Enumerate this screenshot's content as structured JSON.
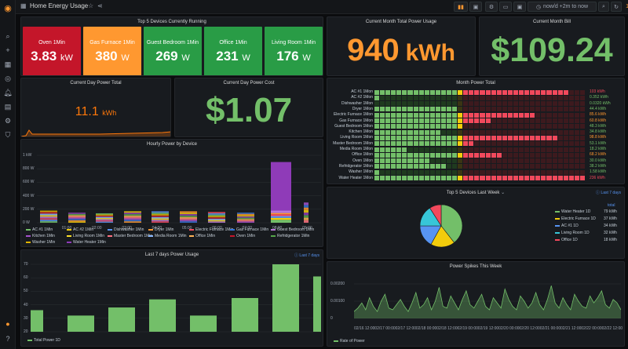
{
  "dashboard": {
    "title": "Home Energy Usage",
    "time_range": "now/d +2m to now",
    "refresh": "1m"
  },
  "top5": {
    "title": "Top 5 Devices Currently Running",
    "devices": [
      {
        "label": "Oven 1Min",
        "value": "3.83",
        "unit": "kW",
        "color": "#c4162a"
      },
      {
        "label": "Gas Furnace 1Min",
        "value": "380",
        "unit": "W",
        "color": "#ff9830"
      },
      {
        "label": "Guest Bedroom 1Min",
        "value": "269",
        "unit": "W",
        "color": "#299c46"
      },
      {
        "label": "Office 1Min",
        "value": "231",
        "unit": "W",
        "color": "#299c46"
      },
      {
        "label": "Living Room 1Min",
        "value": "176",
        "unit": "W",
        "color": "#299c46"
      }
    ]
  },
  "month_total": {
    "title": "Current Month Total Power Usage",
    "value": "940",
    "unit": "kWh",
    "color": "#ff9830"
  },
  "month_bill": {
    "title": "Current Month Bill",
    "value": "$109.24",
    "color": "#73bf69"
  },
  "day_total": {
    "title": "Current Day Power Total",
    "value": "11.1",
    "unit": "kWh",
    "color": "#ff780a"
  },
  "day_cost": {
    "title": "Current Day Power Cost",
    "value": "$1.07",
    "color": "#73bf69"
  },
  "hourly": {
    "title": "Hourly Power by Device",
    "y_ticks": [
      "1 kW",
      "800 W",
      "600 W",
      "400 W",
      "200 W",
      "0 W"
    ],
    "x_ticks": [
      "01:00",
      "02:00",
      "03:00",
      "04:00",
      "05:00",
      "06:00",
      "07:00",
      "08:00",
      "09:00"
    ],
    "legend": [
      {
        "name": "AC #1 1Min",
        "color": "#73bf69"
      },
      {
        "name": "AC #2 1Min",
        "color": "#f2cc0c"
      },
      {
        "name": "Dishwasher 1Min",
        "color": "#5794f2"
      },
      {
        "name": "Dryer 1Min",
        "color": "#ff9830"
      },
      {
        "name": "Electric Furnace 1Min",
        "color": "#f2495c"
      },
      {
        "name": "Gas Furnace 1Min",
        "color": "#3274d9"
      },
      {
        "name": "Guest Bedroom 1Min",
        "color": "#b877d9"
      },
      {
        "name": "Kitchen 1Min",
        "color": "#a352cc"
      },
      {
        "name": "Living Room 1Min",
        "color": "#fade2a"
      },
      {
        "name": "Master Bedroom 1Min",
        "color": "#ff7383"
      },
      {
        "name": "Media Room 1Min",
        "color": "#8ab8ff"
      },
      {
        "name": "Office 1Min",
        "color": "#ffb357"
      },
      {
        "name": "Oven 1Min",
        "color": "#c4162a"
      },
      {
        "name": "Refridgerator 1Min",
        "color": "#56a64b"
      },
      {
        "name": "Washer 1Min",
        "color": "#e0b400"
      },
      {
        "name": "Water Heater 1Min",
        "color": "#8f3bb8"
      }
    ]
  },
  "month_power": {
    "title": "Month Power Total",
    "rows": [
      {
        "label": "AC #1 1Mon",
        "value": "103 kWh",
        "frac": 0.92,
        "color": "#f2495c"
      },
      {
        "label": "AC #2 1Mon",
        "value": "0.352 kWh",
        "frac": 0.02,
        "color": "#73bf69"
      },
      {
        "label": "Dishwasher 1Mon",
        "value": "0.0320 kWh",
        "frac": 0.01,
        "color": "#73bf69"
      },
      {
        "label": "Dryer 1Mon",
        "value": "44.4 kWh",
        "frac": 0.4,
        "color": "#73bf69"
      },
      {
        "label": "Electric Furnace 1Mon",
        "value": "85.6 kWh",
        "frac": 0.76,
        "color": "#ff9830"
      },
      {
        "label": "Gas Furnace 1Mon",
        "value": "60.8 kWh",
        "frac": 0.55,
        "color": "#ff9830"
      },
      {
        "label": "Guest Bedroom 1Mon",
        "value": "48.3 kWh",
        "frac": 0.43,
        "color": "#73bf69"
      },
      {
        "label": "Kitchen 1Mon",
        "value": "34.8 kWh",
        "frac": 0.31,
        "color": "#73bf69"
      },
      {
        "label": "Living Room 1Mon",
        "value": "98.8 kWh",
        "frac": 0.88,
        "color": "#ff9830"
      },
      {
        "label": "Master Bedroom 1Mon",
        "value": "53.1 kWh",
        "frac": 0.47,
        "color": "#73bf69"
      },
      {
        "label": "Media Room 1Mon",
        "value": "18.2 kWh",
        "frac": 0.16,
        "color": "#73bf69"
      },
      {
        "label": "Office 1Mon",
        "value": "68.2 kWh",
        "frac": 0.61,
        "color": "#ff9830"
      },
      {
        "label": "Oven 1Mon",
        "value": "30.0 kWh",
        "frac": 0.27,
        "color": "#73bf69"
      },
      {
        "label": "Refridgerator 1Mon",
        "value": "38.2 kWh",
        "frac": 0.34,
        "color": "#73bf69"
      },
      {
        "label": "Washer 1Mon",
        "value": "1.58 kWh",
        "frac": 0.02,
        "color": "#73bf69"
      },
      {
        "label": "Water Heater 1Mon",
        "value": "236 kWh",
        "frac": 1.0,
        "color": "#f2495c"
      }
    ]
  },
  "last_week": {
    "title": "Top 5 Devices Last Week",
    "link": "Last 7 days",
    "legend_header": "total",
    "items": [
      {
        "name": "Water Heater 1D",
        "value": "79 kWh",
        "frac": 0.4,
        "color": "#73bf69"
      },
      {
        "name": "Electric Furnace 1D",
        "value": "37 kWh",
        "frac": 0.18,
        "color": "#f2cc0c"
      },
      {
        "name": "AC #1 1D",
        "value": "34 kWh",
        "frac": 0.17,
        "color": "#5794f2"
      },
      {
        "name": "Living Room 1D",
        "value": "32 kWh",
        "frac": 0.16,
        "color": "#37c6d8"
      },
      {
        "name": "Office 1D",
        "value": "18 kWh",
        "frac": 0.09,
        "color": "#f2495c"
      }
    ]
  },
  "seven_days": {
    "title": "Last 7 days Power Usage",
    "link": "Last 7 days",
    "y_ticks": [
      "70",
      "60",
      "50",
      "40",
      "30",
      "20"
    ],
    "legend": "Total Power 1D",
    "color": "#73bf69"
  },
  "spikes": {
    "title": "Power Spikes This Week",
    "y_ticks": [
      "0.00200",
      "0.00100",
      "0"
    ],
    "x_ticks": [
      "02/16 12:00",
      "02/17 00:00",
      "02/17 12:00",
      "02/18 00:00",
      "02/18 12:00",
      "02/19 00:00",
      "02/19 12:00",
      "02/20 00:00",
      "02/20 12:00",
      "02/21 00:00",
      "02/21 12:00",
      "02/22 00:00",
      "02/22 12:00"
    ],
    "legend": "Rate of Power",
    "color": "#73bf69"
  },
  "chart_data": [
    {
      "type": "bar",
      "title": "Last 7 days Power Usage",
      "series": [
        {
          "name": "Total Power 1D",
          "values": [
            36,
            32,
            38,
            44,
            32,
            45,
            70,
            61
          ]
        }
      ],
      "ylim": [
        27,
        72
      ]
    },
    {
      "type": "pie",
      "title": "Top 5 Devices Last Week",
      "categories": [
        "Water Heater 1D",
        "Electric Furnace 1D",
        "AC #1 1D",
        "Living Room 1D",
        "Office 1D"
      ],
      "values": [
        79,
        37,
        34,
        32,
        18
      ]
    },
    {
      "type": "bar",
      "title": "Hourly Power by Device",
      "categories": [
        "00:30",
        "01:30",
        "02:30",
        "03:30",
        "04:30",
        "05:30",
        "06:30",
        "07:30",
        "08:30",
        "09:15"
      ],
      "values": [
        180,
        150,
        140,
        170,
        170,
        170,
        160,
        150,
        900,
        300
      ],
      "ylim": [
        0,
        1000
      ]
    },
    {
      "type": "line",
      "title": "Power Spikes This Week",
      "values": [
        0.0004,
        0.0006,
        0.0009,
        0.0005,
        0.0012,
        0.0007,
        0.0004,
        0.001,
        0.0014,
        0.0006,
        0.0005,
        0.0008,
        0.0011,
        0.0007,
        0.0004,
        0.0009,
        0.0015,
        0.0006,
        0.0008,
        0.0012,
        0.0005,
        0.001,
        0.0018,
        0.0007,
        0.0006,
        0.0013,
        0.0009,
        0.0005,
        0.0011,
        0.0016,
        0.0008,
        0.0006,
        0.001,
        0.0014,
        0.0007,
        0.0005,
        0.0012,
        0.0009,
        0.0006,
        0.0017,
        0.0011,
        0.0007,
        0.0005,
        0.0013,
        0.001,
        0.0006,
        0.0009,
        0.0015,
        0.0008,
        0.0005,
        0.0011,
        0.0019,
        0.0009,
        0.0006,
        0.0012,
        0.0008,
        0.0005,
        0.0014,
        0.001,
        0.0007,
        0.0006,
        0.0013,
        0.0009,
        0.0012,
        0.0016,
        0.0008,
        0.0006,
        0.0011,
        0.0009,
        0.0005
      ],
      "ylim": [
        0,
        0.0025
      ]
    }
  ]
}
